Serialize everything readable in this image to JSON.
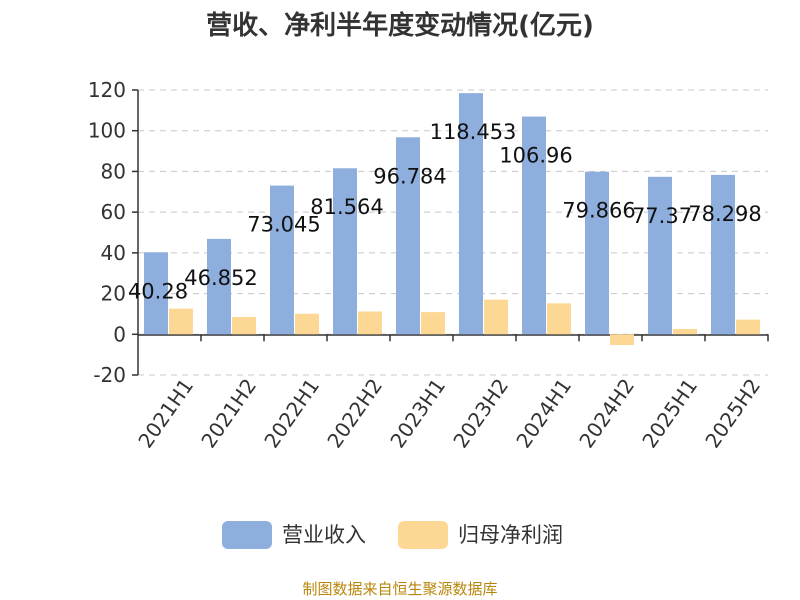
{
  "chart_data": {
    "type": "bar",
    "title": "营收、净利半年度变动情况(亿元)",
    "categories": [
      "2021H1",
      "2021H2",
      "2022H1",
      "2022H2",
      "2023H1",
      "2023H2",
      "2024H1",
      "2024H2",
      "2025H1",
      "2025H2"
    ],
    "series": [
      {
        "name": "营业收入",
        "color": "#8eaedd",
        "values": [
          40.28,
          46.852,
          73.045,
          81.564,
          96.784,
          118.453,
          106.96,
          79.866,
          77.37,
          78.298
        ],
        "labels": [
          "40.28",
          "46.852",
          "73.045",
          "81.564",
          "96.784",
          "118.453",
          "106.96",
          "79.866",
          "77.37",
          "78.298"
        ]
      },
      {
        "name": "归母净利润",
        "color": "#fdd794",
        "values": [
          12.6,
          8.5,
          10.1,
          11.2,
          10.9,
          17.0,
          15.2,
          -5.3,
          2.6,
          7.2
        ]
      }
    ],
    "yticks": [
      120,
      100,
      80,
      60,
      40,
      20,
      0,
      -20
    ],
    "ylim": [
      -20,
      120
    ],
    "grid": true,
    "legend_position": "bottom"
  },
  "source_text": "制图数据来自恒生聚源数据库"
}
